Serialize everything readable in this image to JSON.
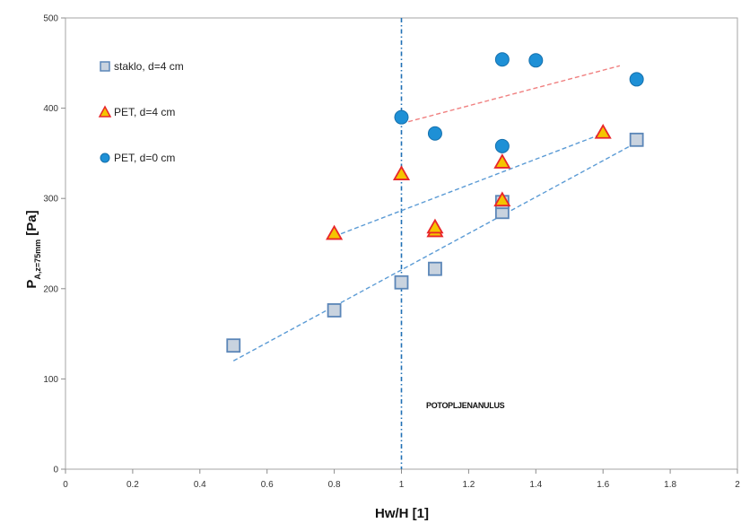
{
  "chart_data": {
    "type": "scatter",
    "xlabel": "Hw/H  [1]",
    "ylabel": {
      "main": "P",
      "sub": "A,z=75mm",
      "unit": "  [Pa]"
    },
    "xlim": [
      0,
      2
    ],
    "ylim": [
      0,
      500
    ],
    "x_ticks": [
      "0",
      "0.2",
      "0.4",
      "0.6",
      "0.8",
      "1",
      "1.2",
      "1.4",
      "1.6",
      "1.8",
      "2"
    ],
    "y_ticks": [
      "0",
      "100",
      "200",
      "300",
      "400",
      "500"
    ],
    "grid": false,
    "legend_position": "top-left",
    "vertical_reference": {
      "x": 1.0,
      "color": "#1f6fb5"
    },
    "annotation": "POTOPLJENANULUS",
    "series": [
      {
        "name": "staklo, d=4 cm",
        "marker": "square",
        "fill": "#c9d3df",
        "stroke": "#5b86b8",
        "points": [
          [
            0.5,
            137
          ],
          [
            0.8,
            176
          ],
          [
            1.0,
            207
          ],
          [
            1.1,
            222
          ],
          [
            1.3,
            285
          ],
          [
            1.3,
            296
          ],
          [
            1.7,
            365
          ]
        ],
        "trend": {
          "x0": 0.5,
          "y0": 120,
          "x1": 1.7,
          "y1": 362,
          "color": "#5b9bd5"
        }
      },
      {
        "name": "PET, d=4 cm",
        "marker": "triangle",
        "fill": "#f5c400",
        "stroke": "#e8262a",
        "points": [
          [
            0.8,
            261
          ],
          [
            1.0,
            327
          ],
          [
            1.1,
            264
          ],
          [
            1.1,
            268
          ],
          [
            1.3,
            298
          ],
          [
            1.3,
            340
          ],
          [
            1.6,
            373
          ]
        ],
        "trend": {
          "x0": 0.8,
          "y0": 258,
          "x1": 1.6,
          "y1": 372,
          "color": "#5b9bd5"
        }
      },
      {
        "name": "PET, d=0 cm",
        "marker": "circle",
        "fill": "#1e90d6",
        "stroke": "#1570ad",
        "points": [
          [
            1.0,
            390
          ],
          [
            1.1,
            372
          ],
          [
            1.3,
            358
          ],
          [
            1.3,
            454
          ],
          [
            1.4,
            453
          ],
          [
            1.7,
            432
          ]
        ],
        "trend": {
          "x0": 1.0,
          "y0": 383,
          "x1": 1.65,
          "y1": 447,
          "color": "#f08080"
        }
      }
    ]
  }
}
